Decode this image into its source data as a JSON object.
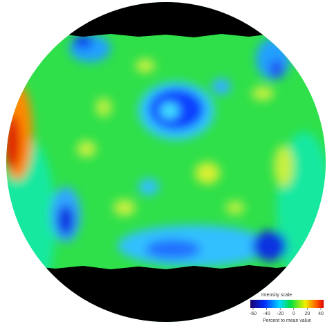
{
  "legend": {
    "title": "Intensity scale",
    "ticks": [
      -60,
      -40,
      -20,
      0,
      20,
      40
    ],
    "caption": "Percent to mean value"
  }
}
